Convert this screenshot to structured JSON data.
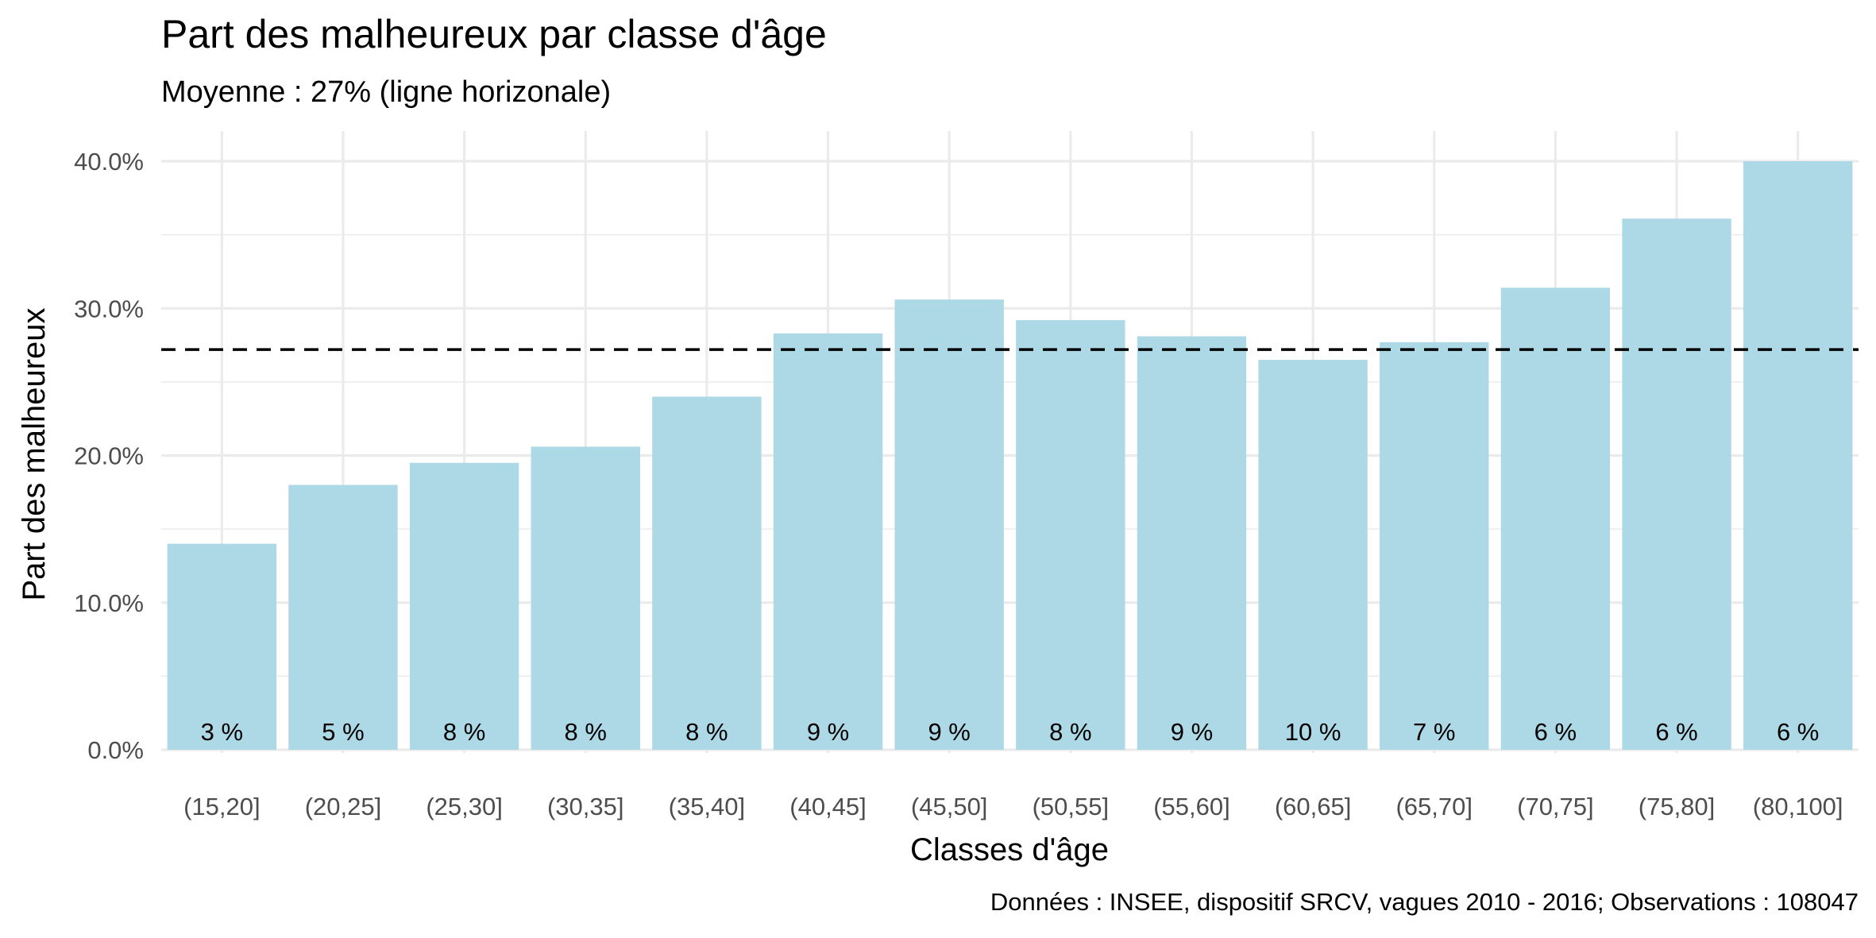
{
  "chart_data": {
    "type": "bar",
    "title": "Part des malheureux par classe d'âge",
    "subtitle": "Moyenne : 27% (ligne horizonale)",
    "xlabel": "Classes d'âge",
    "ylabel": "Part des malheureux",
    "caption": "Données : INSEE, dispositif SRCV, vagues 2010 - 2016; Observations : 108047",
    "categories": [
      "(15,20]",
      "(20,25]",
      "(25,30]",
      "(30,35]",
      "(35,40]",
      "(40,45]",
      "(45,50]",
      "(50,55]",
      "(55,60]",
      "(60,65]",
      "(65,70]",
      "(70,75]",
      "(75,80]",
      "(80,100]"
    ],
    "values": [
      0.14,
      0.18,
      0.195,
      0.206,
      0.24,
      0.283,
      0.306,
      0.292,
      0.281,
      0.265,
      0.277,
      0.314,
      0.361,
      0.4
    ],
    "bar_labels": [
      "3 %",
      "5 %",
      "8 %",
      "8 %",
      "8 %",
      "9 %",
      "9 %",
      "8 %",
      "9 %",
      "10 %",
      "7 %",
      "6 %",
      "6 %",
      "6 %"
    ],
    "reference_line": {
      "value": 0.272,
      "style": "dashed",
      "color": "#000000"
    },
    "ylim": [
      0,
      0.4
    ],
    "yticks": [
      0,
      0.1,
      0.2,
      0.3,
      0.4
    ],
    "ytick_labels": [
      "0.0%",
      "10.0%",
      "20.0%",
      "30.0%",
      "40.0%"
    ],
    "grid": true,
    "legend": "none",
    "bar_color": "#add8e6"
  }
}
